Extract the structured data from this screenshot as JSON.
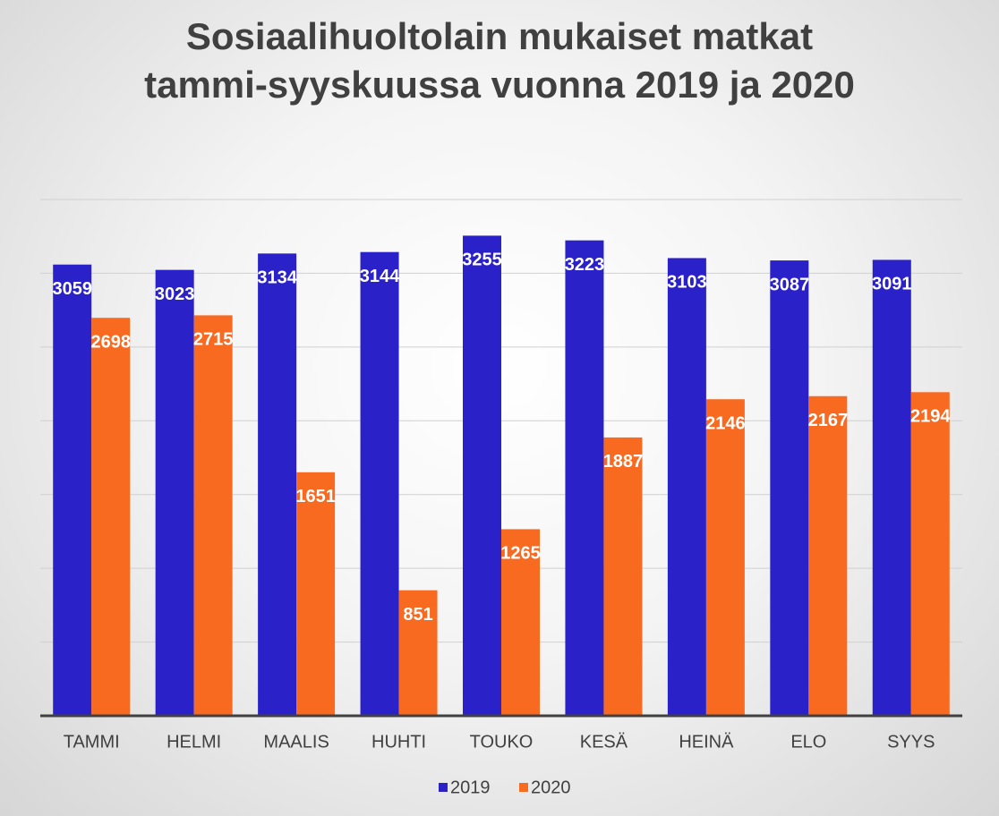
{
  "chart_data": {
    "type": "bar",
    "title": "Sosiaalihuoltolain mukaiset matkat tammi-syyskuussa vuonna 2019 ja 2020",
    "categories": [
      "TAMMI",
      "HELMI",
      "MAALIS",
      "HUHTI",
      "TOUKO",
      "KESÄ",
      "HEINÄ",
      "ELO",
      "SYYS"
    ],
    "series": [
      {
        "name": "2019",
        "color": "#2a22c8",
        "values": [
          3059,
          3023,
          3134,
          3144,
          3255,
          3223,
          3103,
          3087,
          3091
        ]
      },
      {
        "name": "2020",
        "color": "#f96a21",
        "values": [
          2698,
          2715,
          1651,
          851,
          1265,
          1887,
          2146,
          2167,
          2194
        ]
      }
    ],
    "ylim": [
      0,
      3500
    ],
    "yticks": [
      0,
      500,
      1000,
      1500,
      2000,
      2500,
      3000,
      3500
    ],
    "grid": true,
    "show_ytick_labels": false,
    "legend": "bottom"
  }
}
